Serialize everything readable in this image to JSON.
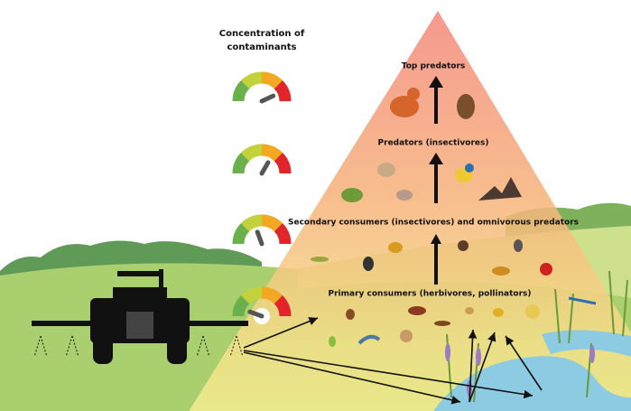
{
  "title": "Concentration of contaminants",
  "levels": [
    {
      "label": "Top predators"
    },
    {
      "label": "Predators (insectivores)"
    },
    {
      "label": "Secondary consumers (insectivores) and omnivorous predators"
    },
    {
      "label": "Primary consumers (herbivores, pollinators)"
    }
  ]
}
